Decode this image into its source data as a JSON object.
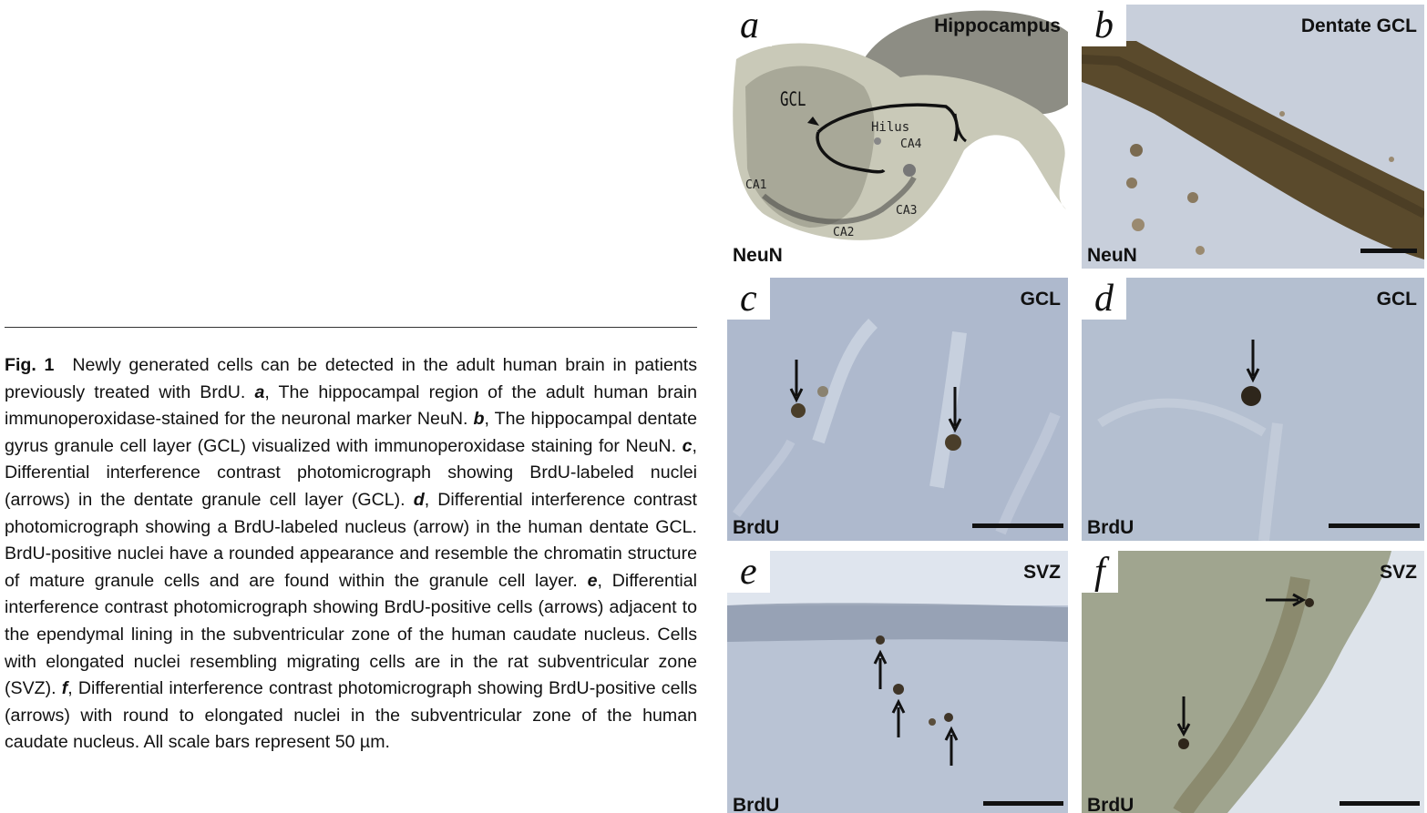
{
  "caption": {
    "fig_label": "Fig. 1",
    "segments": [
      {
        "bold": false,
        "text": "Newly generated cells can be detected in the adult human brain in patients previously treated with BrdU. "
      },
      {
        "bold": true,
        "text": "a"
      },
      {
        "bold": false,
        "text": ", The hippocampal region of the adult human brain immunoperoxidase-stained for the neuronal marker NeuN. "
      },
      {
        "bold": true,
        "text": "b"
      },
      {
        "bold": false,
        "text": ", The hippocampal dentate gyrus granule cell layer (GCL) visualized with immunoperoxidase staining for NeuN. "
      },
      {
        "bold": true,
        "text": "c"
      },
      {
        "bold": false,
        "text": ", Differential interference contrast photomicrograph showing BrdU-labeled nuclei (arrows) in the dentate granule cell layer (GCL). "
      },
      {
        "bold": true,
        "text": "d"
      },
      {
        "bold": false,
        "text": ", Differential interference contrast photomicrograph showing a BrdU-labeled nucleus (arrow) in the human dentate GCL. BrdU-positive nuclei have a rounded appearance and resemble the chromatin structure of mature granule cells and are found within the granule cell layer. "
      },
      {
        "bold": true,
        "text": "e"
      },
      {
        "bold": false,
        "text": ", Differential interference contrast photomicrograph showing BrdU-positive cells (arrows) adjacent to the ependymal lining in the subventricular zone of the human caudate nucleus. Cells with elongated nuclei resembling migrating cells are in the rat subventricular zone (SVZ). "
      },
      {
        "bold": true,
        "text": "f"
      },
      {
        "bold": false,
        "text": ", Differential interference contrast photomicrograph showing BrdU-positive cells (arrows) with round to elongated nuclei in the subventricular zone of the human caudate nucleus. All scale bars represent 50 µm."
      }
    ]
  },
  "panels": {
    "a": {
      "letter": "a",
      "title": "Hippocampus",
      "stain": "NeuN",
      "labels": {
        "gcl": "GCL",
        "hilus": "Hilus",
        "ca1": "CA1",
        "ca2": "CA2",
        "ca3": "CA3",
        "ca4": "CA4"
      }
    },
    "b": {
      "letter": "b",
      "title": "Dentate GCL",
      "stain": "NeuN"
    },
    "c": {
      "letter": "c",
      "title": "GCL",
      "stain": "BrdU"
    },
    "d": {
      "letter": "d",
      "title": "GCL",
      "stain": "BrdU"
    },
    "e": {
      "letter": "e",
      "title": "SVZ",
      "stain": "BrdU"
    },
    "f": {
      "letter": "f",
      "title": "SVZ",
      "stain": "BrdU"
    }
  },
  "colors": {
    "dic_background": "#aab7cc",
    "neun_brown": "#5a4a2c",
    "brdu_nucleus": "#3a2f22",
    "tissue_grey": "#b8b8a6"
  }
}
